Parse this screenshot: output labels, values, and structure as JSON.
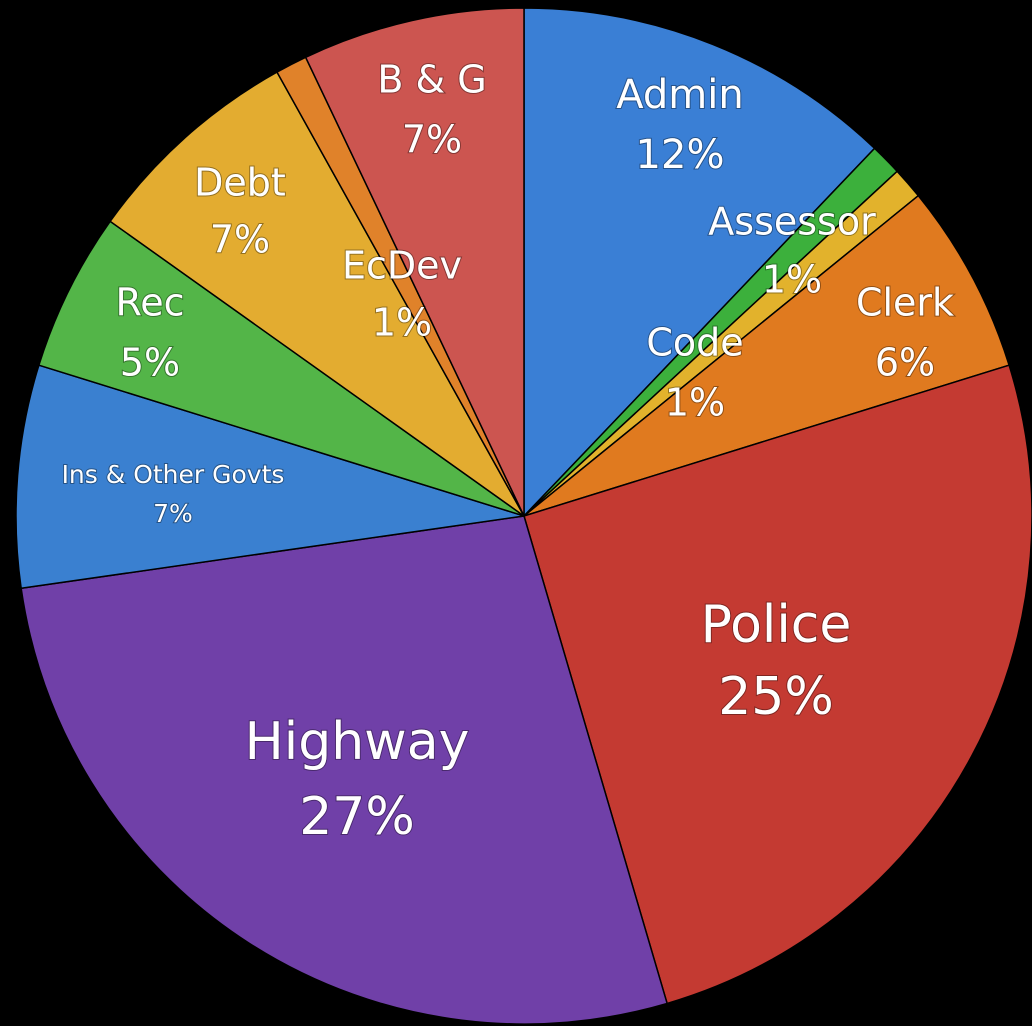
{
  "chart_data": {
    "type": "pie",
    "categories": [
      "Admin",
      "Assessor",
      "Code",
      "Clerk",
      "Police",
      "Highway",
      "Ins & Other Govts",
      "Rec",
      "Debt",
      "EcDev",
      "B & G"
    ],
    "values": [
      12,
      1,
      1,
      6,
      25,
      27,
      7,
      5,
      7,
      1,
      7
    ],
    "value_labels": [
      "12%",
      "1%",
      "1%",
      "6%",
      "25%",
      "27%",
      "7%",
      "5%",
      "7%",
      "1%",
      "7%"
    ],
    "colors": [
      "#3a7fd5",
      "#3cb03c",
      "#e2b22c",
      "#e07a1f",
      "#c43a32",
      "#7040a8",
      "#3a80d0",
      "#53b548",
      "#e3ac30",
      "#e0822a",
      "#cc5550"
    ]
  }
}
